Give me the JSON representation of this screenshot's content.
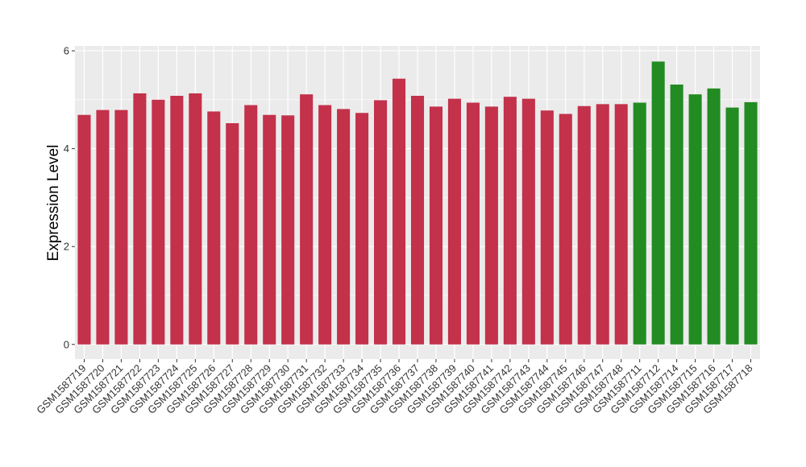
{
  "chart_data": {
    "type": "bar",
    "title": "",
    "xlabel": "",
    "ylabel": "Expression Level",
    "ylim": [
      -0.3,
      6.1
    ],
    "yticks": [
      0,
      2,
      4,
      6
    ],
    "grid": true,
    "panel_background": "#ebebeb",
    "gridline_color": "#ffffff",
    "group_colors": {
      "a": "#c3314a",
      "b": "#228b22"
    },
    "categories": [
      "GSM1587719",
      "GSM1587720",
      "GSM1587721",
      "GSM1587722",
      "GSM1587723",
      "GSM1587724",
      "GSM1587725",
      "GSM1587726",
      "GSM1587727",
      "GSM1587728",
      "GSM1587729",
      "GSM1587730",
      "GSM1587731",
      "GSM1587732",
      "GSM1587733",
      "GSM1587734",
      "GSM1587735",
      "GSM1587736",
      "GSM1587737",
      "GSM1587738",
      "GSM1587739",
      "GSM1587740",
      "GSM1587741",
      "GSM1587742",
      "GSM1587743",
      "GSM1587744",
      "GSM1587745",
      "GSM1587746",
      "GSM1587747",
      "GSM1587748",
      "GSM1587711",
      "GSM1587712",
      "GSM1587714",
      "GSM1587715",
      "GSM1587716",
      "GSM1587717",
      "GSM1587718"
    ],
    "values": [
      4.69,
      4.79,
      4.79,
      5.13,
      5.0,
      5.08,
      5.13,
      4.76,
      4.52,
      4.89,
      4.69,
      4.68,
      5.11,
      4.89,
      4.81,
      4.73,
      4.99,
      5.43,
      5.08,
      4.86,
      5.02,
      4.94,
      4.86,
      5.06,
      5.02,
      4.78,
      4.71,
      4.87,
      4.91,
      4.91,
      4.94,
      5.78,
      5.31,
      5.11,
      5.23,
      4.84,
      4.95
    ],
    "groups": [
      "a",
      "a",
      "a",
      "a",
      "a",
      "a",
      "a",
      "a",
      "a",
      "a",
      "a",
      "a",
      "a",
      "a",
      "a",
      "a",
      "a",
      "a",
      "a",
      "a",
      "a",
      "a",
      "a",
      "a",
      "a",
      "a",
      "a",
      "a",
      "a",
      "a",
      "b",
      "b",
      "b",
      "b",
      "b",
      "b",
      "b"
    ]
  }
}
